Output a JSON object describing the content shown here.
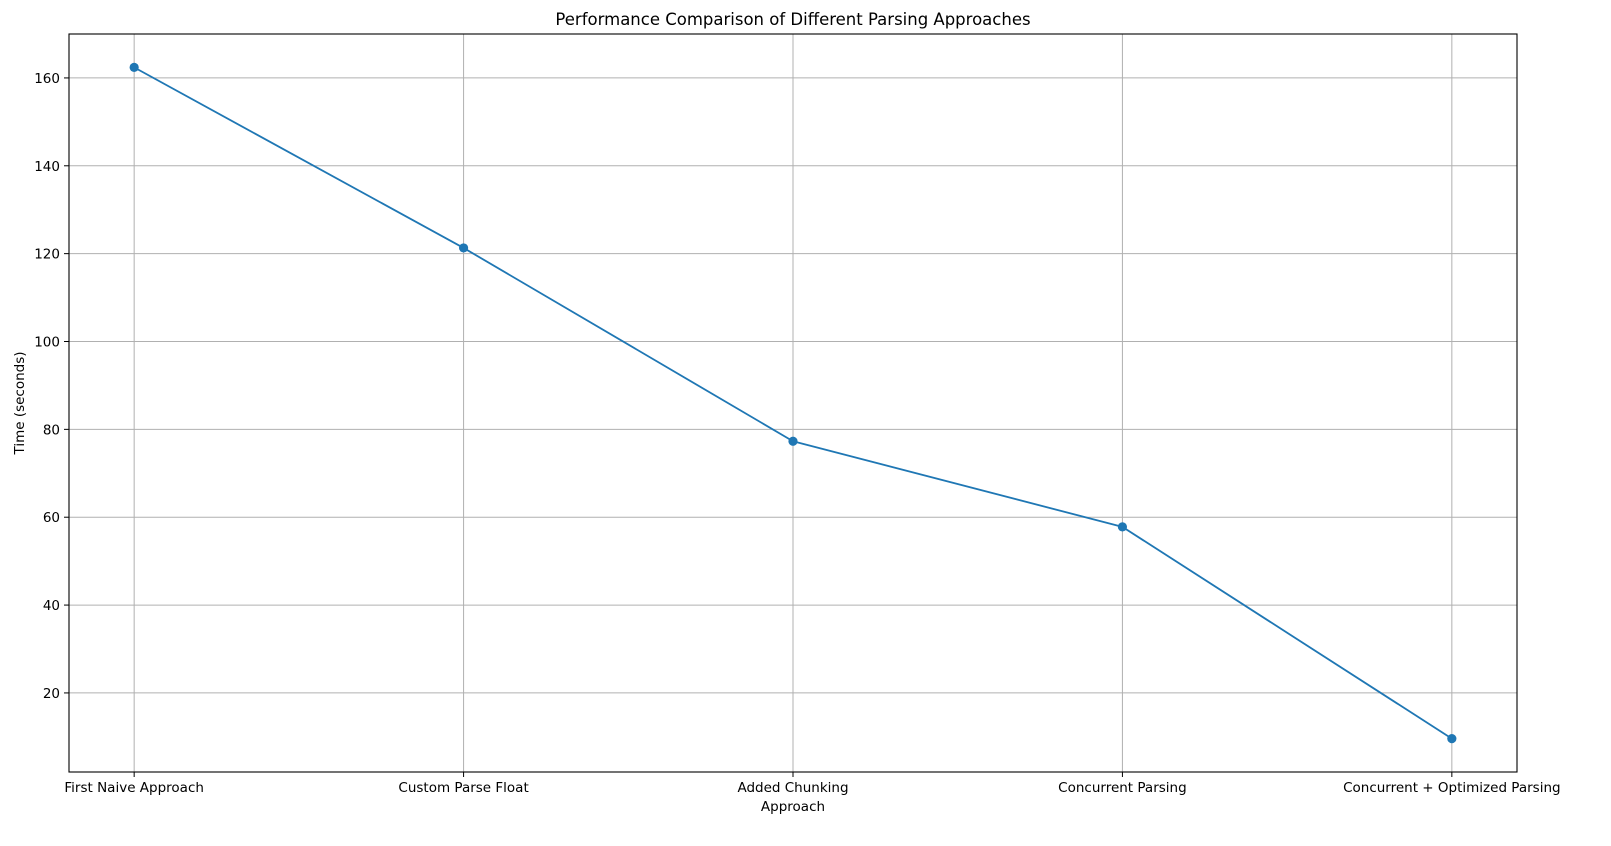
{
  "chart_data": {
    "type": "line",
    "title": "Performance Comparison of Different Parsing Approaches",
    "xlabel": "Approach",
    "ylabel": "Time (seconds)",
    "categories": [
      "First Naive Approach",
      "Custom Parse Float",
      "Added Chunking",
      "Concurrent Parsing",
      "Concurrent + Optimized Parsing"
    ],
    "series": [
      {
        "values": [
          162.4,
          121.3,
          77.3,
          57.8,
          9.6
        ],
        "color": "#1f77b4",
        "marker": "circle"
      }
    ],
    "yticks": [
      20,
      40,
      60,
      80,
      100,
      120,
      140,
      160
    ],
    "ylim": [
      2,
      170
    ],
    "grid": true
  }
}
